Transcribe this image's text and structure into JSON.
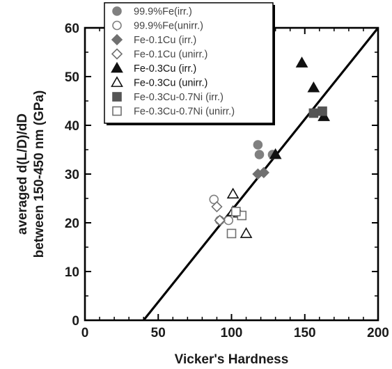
{
  "chart_data": {
    "type": "scatter",
    "title": "",
    "xlabel": "Vicker's Hardness",
    "ylabel_lines": [
      "averaged d(L/D)/dD",
      "between 150-450 nm  (GPa)"
    ],
    "xlim": [
      0,
      200
    ],
    "ylim": [
      0,
      60
    ],
    "xticks": [
      0,
      50,
      100,
      150,
      200
    ],
    "yticks": [
      0,
      10,
      20,
      30,
      40,
      50,
      60
    ],
    "grid": false,
    "legend_position": "top-left",
    "series": [
      {
        "name": "99.9%Fe(irr.)",
        "marker": "circle",
        "filled": true,
        "color": "#808080",
        "points": [
          [
            118,
            36
          ],
          [
            119,
            34
          ],
          [
            128,
            34
          ]
        ]
      },
      {
        "name": "99.9%Fe(unirr.)",
        "marker": "circle",
        "filled": false,
        "color": "#808080",
        "points": [
          [
            88,
            24.8
          ],
          [
            92,
            20.5
          ],
          [
            98,
            20.5
          ]
        ]
      },
      {
        "name": "Fe-0.1Cu (irr.)",
        "marker": "diamond",
        "filled": true,
        "color": "#707070",
        "points": [
          [
            118,
            30
          ],
          [
            122,
            30.3
          ]
        ]
      },
      {
        "name": "Fe-0.1Cu (unirr.)",
        "marker": "diamond",
        "filled": false,
        "color": "#707070",
        "points": [
          [
            90,
            23.3
          ],
          [
            92,
            20.5
          ]
        ]
      },
      {
        "name": "Fe-0.3Cu (irr.)",
        "marker": "triangle",
        "filled": true,
        "color": "#111111",
        "points": [
          [
            148,
            52.8
          ],
          [
            156,
            47.7
          ],
          [
            163,
            41.8
          ],
          [
            130,
            34
          ]
        ]
      },
      {
        "name": "Fe-0.3Cu (unirr.)",
        "marker": "triangle",
        "filled": false,
        "color": "#111111",
        "points": [
          [
            101,
            25.9
          ],
          [
            101,
            22.3
          ],
          [
            105,
            22
          ],
          [
            110,
            17.8
          ]
        ]
      },
      {
        "name": "Fe-0.3Cu-0.7Ni (irr.)",
        "marker": "square",
        "filled": true,
        "color": "#555555",
        "points": [
          [
            156,
            42.5
          ],
          [
            162,
            42.9
          ]
        ]
      },
      {
        "name": "Fe-0.3Cu-0.7Ni (unirr.)",
        "marker": "square",
        "filled": false,
        "color": "#707070",
        "points": [
          [
            100,
            17.8
          ],
          [
            107,
            21.5
          ],
          [
            103,
            22.3
          ]
        ]
      }
    ],
    "fit_line": {
      "points": [
        [
          40,
          0
        ],
        [
          200,
          60
        ]
      ],
      "color": "#000000"
    }
  }
}
